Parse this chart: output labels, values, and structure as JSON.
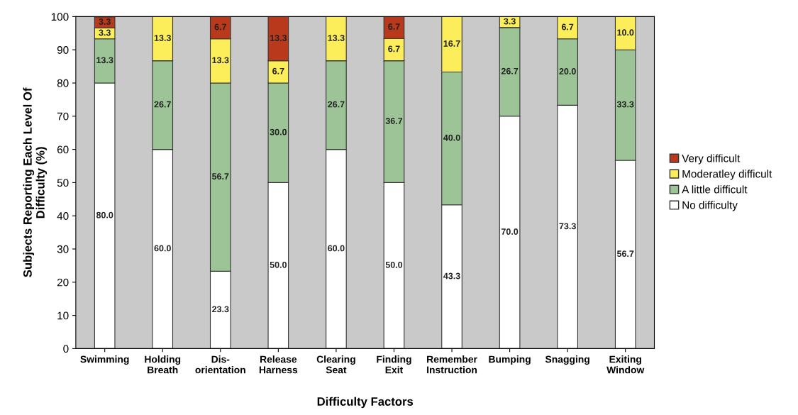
{
  "chart_data": {
    "type": "bar",
    "stacked": true,
    "xlabel": "Difficulty Factors",
    "ylabel": "Subjects Reporting Each Level Of\nDifficulty (%)",
    "categories": [
      "Swimming",
      "Holding\nBreath",
      "Dis-\norientation",
      "Release\nHarness",
      "Clearing\nSeat",
      "Finding\nExit",
      "Remember\nInstruction",
      "Bumping",
      "Snagging",
      "Exiting\nWindow"
    ],
    "series": [
      {
        "name": "No difficulty",
        "color": "#ffffff",
        "values": [
          80.0,
          60.0,
          23.3,
          50.0,
          60.0,
          50.0,
          43.3,
          70.0,
          73.3,
          56.7
        ],
        "value_labels": [
          "80.0",
          "60.0",
          "23.3",
          "50.0",
          "60.0",
          "50.0",
          "43.3",
          "70.0",
          "73.3",
          "56.7"
        ]
      },
      {
        "name": "A little difficult",
        "color": "#9cc497",
        "values": [
          13.3,
          26.7,
          56.7,
          30.0,
          26.7,
          36.7,
          40.0,
          26.7,
          20.0,
          33.3
        ],
        "value_labels": [
          "13.3",
          "26.7",
          "56.7",
          "30.0",
          "26.7",
          "36.7",
          "40.0",
          "26.7",
          "20.0",
          "33.3"
        ]
      },
      {
        "name": "Moderatley difficult",
        "color": "#fbee5a",
        "values": [
          3.3,
          13.3,
          13.3,
          6.7,
          13.3,
          6.7,
          16.7,
          3.3,
          6.7,
          10.0
        ],
        "value_labels": [
          "3.3",
          "13.3",
          "13.3",
          "6.7",
          "13.3",
          "6.7",
          "16.7",
          "3.3",
          "6.7",
          "10.0"
        ]
      },
      {
        "name": "Very difficult",
        "color": "#b8391c",
        "values": [
          3.3,
          null,
          6.7,
          13.3,
          null,
          6.7,
          null,
          null,
          null,
          null
        ],
        "value_labels": [
          "3.3",
          null,
          "6.7",
          "13.3",
          null,
          "6.7",
          null,
          null,
          null,
          null
        ]
      }
    ],
    "ylim": [
      0,
      100
    ],
    "yticks": [
      0,
      10,
      20,
      30,
      40,
      50,
      60,
      70,
      80,
      90,
      100
    ],
    "legend": "right",
    "grid": false
  }
}
